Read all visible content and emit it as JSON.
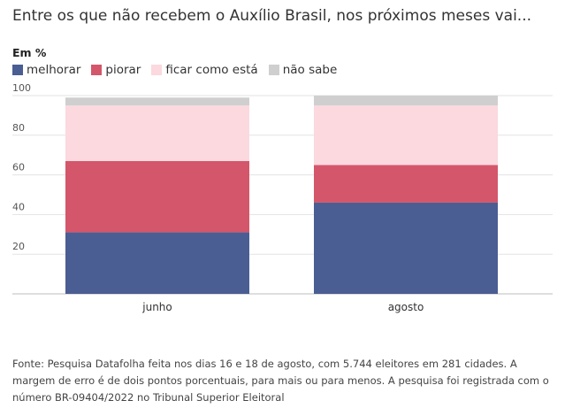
{
  "title": "Entre os que não recebem o Auxílio Brasil, nos próximos meses vai...",
  "unit_label": "Em %",
  "legend": [
    {
      "label": "melhorar",
      "color": "#4a5e93"
    },
    {
      "label": "piorar",
      "color": "#d4566b"
    },
    {
      "label": "ficar como está",
      "color": "#fbd9df"
    },
    {
      "label": "não sabe",
      "color": "#cfcfcf"
    }
  ],
  "chart_data": {
    "type": "bar",
    "stacked": true,
    "categories": [
      "junho",
      "agosto"
    ],
    "series": [
      {
        "name": "melhorar",
        "color": "#4a5e93",
        "values": [
          31,
          46
        ]
      },
      {
        "name": "piorar",
        "color": "#d4566b",
        "values": [
          36,
          19
        ]
      },
      {
        "name": "ficar como está",
        "color": "#fbd9df",
        "values": [
          28,
          30
        ]
      },
      {
        "name": "não sabe",
        "color": "#cfcfcf",
        "values": [
          4,
          5
        ]
      }
    ],
    "yticks": [
      20,
      40,
      60,
      80,
      100
    ],
    "ylim": [
      0,
      100
    ],
    "grid": true
  },
  "footnote": "Fonte: Pesquisa Datafolha feita nos dias 16 e 18 de agosto, com 5.744 eleitores em 281 cidades. A margem de erro é de dois pontos porcentuais, para mais ou para menos. A pesquisa foi registrada com o número BR-09404/2022 no Tribunal Superior Eleitoral"
}
